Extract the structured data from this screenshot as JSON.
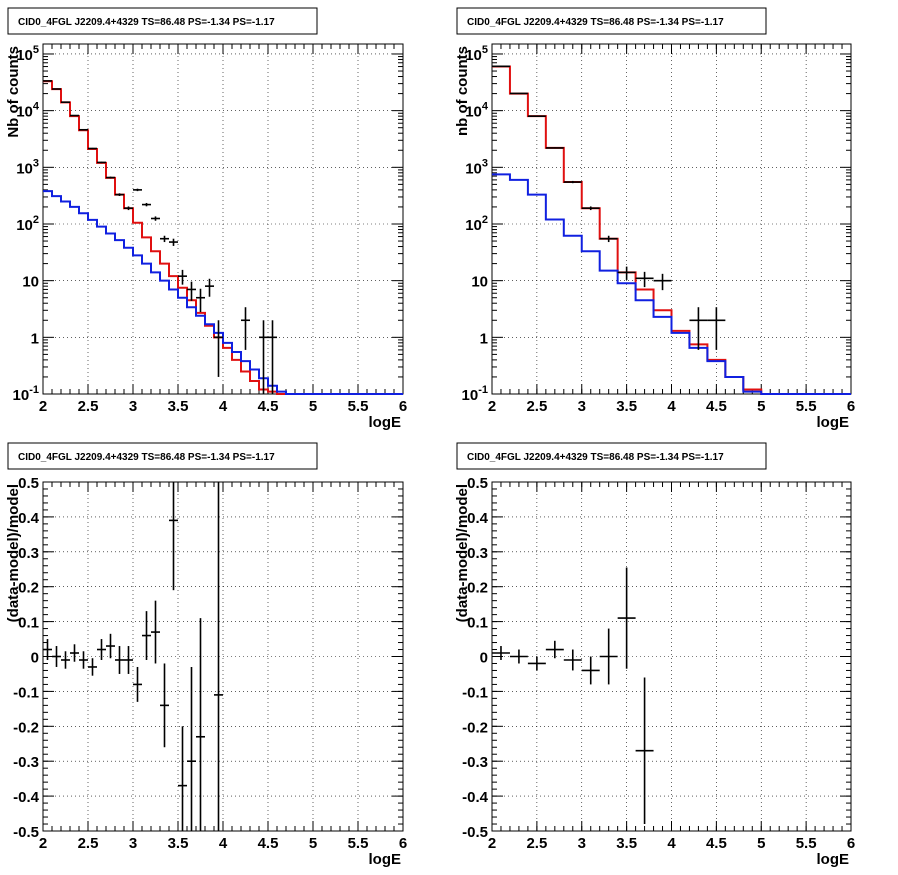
{
  "chart_data": [
    {
      "type": "line",
      "title": "CID0_4FGL J2209.4+4329 TS=86.48 PS=-1.34 PS=-1.17",
      "xlabel": "logE",
      "ylabel": "Nb of counts",
      "xlim": [
        2,
        6
      ],
      "ylim": [
        0.1,
        150000
      ],
      "yscale": "log",
      "grid": true,
      "xticks": [
        "2",
        "2.5",
        "3",
        "3.5",
        "4",
        "4.5",
        "5",
        "5.5",
        "6"
      ],
      "yticks": [
        {
          "value": 0.1,
          "base": "10",
          "exp": "-1"
        },
        {
          "value": 1,
          "label": "1"
        },
        {
          "value": 10,
          "label": "10"
        },
        {
          "value": 100,
          "base": "10",
          "exp": "2"
        },
        {
          "value": 1000,
          "base": "10",
          "exp": "3"
        },
        {
          "value": 10000,
          "base": "10",
          "exp": "4"
        },
        {
          "value": 100000,
          "base": "10",
          "exp": "5"
        }
      ],
      "bin_edges": [
        2.0,
        2.1,
        2.2,
        2.3,
        2.4,
        2.5,
        2.6,
        2.7,
        2.8,
        2.9,
        3.0,
        3.1,
        3.2,
        3.3,
        3.4,
        3.5,
        3.6,
        3.7,
        3.8,
        3.9,
        4.0,
        4.1,
        4.2,
        4.3,
        4.4,
        4.5,
        4.6,
        4.7,
        4.8,
        4.9,
        5.0,
        5.1,
        5.2,
        5.3,
        5.4,
        5.5,
        5.6,
        5.7,
        5.8,
        5.9,
        6.0
      ],
      "series": [
        {
          "color": "#e01010",
          "values": [
            33000,
            24000,
            14000,
            8000,
            4500,
            2100,
            1200,
            650,
            330,
            190,
            105,
            58,
            33,
            20,
            12,
            7.5,
            4.5,
            2.7,
            1.6,
            1.0,
            0.65,
            0.4,
            0.25,
            0.17,
            0.12,
            0.11,
            0.1,
            0.1,
            0.1,
            0.1,
            0.1,
            0.1,
            0.1,
            0.1,
            0.1,
            0.1,
            0.1,
            0.1,
            0.1,
            0.1
          ]
        },
        {
          "color": "#1020e0",
          "values": [
            380,
            310,
            250,
            200,
            155,
            118,
            90,
            68,
            52,
            38,
            28,
            20,
            14,
            10,
            7,
            5,
            3.4,
            2.4,
            1.7,
            1.2,
            0.8,
            0.55,
            0.38,
            0.27,
            0.19,
            0.14,
            0.11,
            0.1,
            0.1,
            0.1,
            0.1,
            0.1,
            0.1,
            0.1,
            0.1,
            0.1,
            0.1,
            0.1,
            0.1,
            0.1
          ]
        }
      ],
      "data_points": [
        {
          "x": 2.05,
          "y": 33500,
          "ylo": 33300,
          "yhi": 33700
        },
        {
          "x": 2.15,
          "y": 24100,
          "ylo": 23900,
          "yhi": 24300
        },
        {
          "x": 2.25,
          "y": 14100,
          "ylo": 13950,
          "yhi": 14250
        },
        {
          "x": 2.35,
          "y": 8200,
          "ylo": 8100,
          "yhi": 8300
        },
        {
          "x": 2.45,
          "y": 4600,
          "ylo": 4530,
          "yhi": 4670
        },
        {
          "x": 2.55,
          "y": 2150,
          "ylo": 2100,
          "yhi": 2200
        },
        {
          "x": 2.65,
          "y": 1220,
          "ylo": 1185,
          "yhi": 1255
        },
        {
          "x": 2.75,
          "y": 660,
          "ylo": 635,
          "yhi": 685
        },
        {
          "x": 2.85,
          "y": 330,
          "ylo": 312,
          "yhi": 348
        },
        {
          "x": 2.95,
          "y": 190,
          "ylo": 176,
          "yhi": 204
        },
        {
          "x": 3.05,
          "y": 400,
          "ylo": 380,
          "yhi": 420
        },
        {
          "x": 3.15,
          "y": 220,
          "ylo": 205,
          "yhi": 235
        },
        {
          "x": 3.25,
          "y": 125,
          "ylo": 114,
          "yhi": 136
        },
        {
          "x": 3.35,
          "y": 55,
          "ylo": 48,
          "yhi": 62
        },
        {
          "x": 3.45,
          "y": 48,
          "ylo": 41,
          "yhi": 55
        },
        {
          "x": 3.55,
          "y": 12,
          "ylo": 8.5,
          "yhi": 15.5
        },
        {
          "x": 3.65,
          "y": 7,
          "ylo": 4.4,
          "yhi": 9.6
        },
        {
          "x": 3.75,
          "y": 5,
          "ylo": 2.8,
          "yhi": 7.2
        },
        {
          "x": 3.85,
          "y": 8,
          "ylo": 5.2,
          "yhi": 10.8
        },
        {
          "x": 3.95,
          "y": 1,
          "ylo": 0.2,
          "yhi": 2.0
        },
        {
          "x": 4.25,
          "y": 2,
          "ylo": 0.6,
          "yhi": 3.4
        },
        {
          "x": 4.45,
          "y": 1,
          "ylo": 0.1,
          "yhi": 2.0
        },
        {
          "x": 4.55,
          "y": 1,
          "ylo": 0.1,
          "yhi": 2.0
        }
      ]
    },
    {
      "type": "line",
      "title": "CID0_4FGL J2209.4+4329 TS=86.48 PS=-1.34 PS=-1.17",
      "xlabel": "logE",
      "ylabel": "nb of counts",
      "xlim": [
        2,
        6
      ],
      "ylim": [
        0.1,
        150000
      ],
      "yscale": "log",
      "grid": true,
      "xticks": [
        "2",
        "2.5",
        "3",
        "3.5",
        "4",
        "4.5",
        "5",
        "5.5",
        "6"
      ],
      "yticks": [
        {
          "value": 0.1,
          "base": "10",
          "exp": "-1"
        },
        {
          "value": 1,
          "label": "1"
        },
        {
          "value": 10,
          "label": "10"
        },
        {
          "value": 100,
          "base": "10",
          "exp": "2"
        },
        {
          "value": 1000,
          "base": "10",
          "exp": "3"
        },
        {
          "value": 10000,
          "base": "10",
          "exp": "4"
        },
        {
          "value": 100000,
          "base": "10",
          "exp": "5"
        }
      ],
      "bin_edges": [
        2.0,
        2.2,
        2.4,
        2.6,
        2.8,
        3.0,
        3.2,
        3.4,
        3.6,
        3.8,
        4.0,
        4.2,
        4.4,
        4.6,
        4.8,
        5.0,
        5.2,
        5.4,
        5.6,
        5.8,
        6.0
      ],
      "series": [
        {
          "color": "#e01010",
          "values": [
            60000,
            20000,
            8000,
            2200,
            550,
            190,
            55,
            14,
            7,
            3,
            1.3,
            0.75,
            0.4,
            0.2,
            0.12,
            0.1,
            0.1,
            0.1,
            0.1,
            0.1
          ]
        },
        {
          "color": "#1020e0",
          "values": [
            750,
            600,
            330,
            120,
            62,
            33,
            15,
            9,
            4.5,
            2.3,
            1.2,
            0.65,
            0.38,
            0.2,
            0.11,
            0.1,
            0.1,
            0.1,
            0.1,
            0.1
          ]
        }
      ],
      "data_points": [
        {
          "x": 2.1,
          "y": 60500,
          "ylo": 60200,
          "yhi": 60800
        },
        {
          "x": 2.3,
          "y": 20100,
          "ylo": 19950,
          "yhi": 20250
        },
        {
          "x": 2.5,
          "y": 8000,
          "ylo": 7910,
          "yhi": 8090
        },
        {
          "x": 2.7,
          "y": 2200,
          "ylo": 2150,
          "yhi": 2250
        },
        {
          "x": 2.9,
          "y": 550,
          "ylo": 525,
          "yhi": 575
        },
        {
          "x": 3.1,
          "y": 190,
          "ylo": 176,
          "yhi": 204
        },
        {
          "x": 3.3,
          "y": 55,
          "ylo": 48,
          "yhi": 62
        },
        {
          "x": 3.5,
          "y": 14,
          "ylo": 10.3,
          "yhi": 17.7
        },
        {
          "x": 3.7,
          "y": 11,
          "ylo": 7.7,
          "yhi": 14.3
        },
        {
          "x": 3.9,
          "y": 10,
          "ylo": 6.8,
          "yhi": 13.2
        },
        {
          "x": 4.3,
          "y": 2,
          "ylo": 0.6,
          "yhi": 3.4
        },
        {
          "x": 4.5,
          "y": 2,
          "ylo": 0.6,
          "yhi": 3.4
        }
      ]
    },
    {
      "type": "scatter",
      "title": "CID0_4FGL J2209.4+4329 TS=86.48 PS=-1.34 PS=-1.17",
      "xlabel": "logE",
      "ylabel": "(data-model)/model",
      "xlim": [
        2,
        6
      ],
      "ylim": [
        -0.5,
        0.5
      ],
      "grid": true,
      "xticks": [
        "2",
        "2.5",
        "3",
        "3.5",
        "4",
        "4.5",
        "5",
        "5.5",
        "6"
      ],
      "yticks": [
        "0.5",
        "0.4",
        "0.3",
        "0.2",
        "0.1",
        "0",
        "-0.1",
        "-0.2",
        "-0.3",
        "-0.4",
        "-0.5"
      ],
      "bin_width": 0.1,
      "points": [
        {
          "x": 2.05,
          "y": 0.02,
          "err": 0.03
        },
        {
          "x": 2.15,
          "y": 0.0,
          "err": 0.03
        },
        {
          "x": 2.25,
          "y": -0.01,
          "err": 0.025
        },
        {
          "x": 2.35,
          "y": 0.01,
          "err": 0.025
        },
        {
          "x": 2.45,
          "y": -0.01,
          "err": 0.025
        },
        {
          "x": 2.55,
          "y": -0.03,
          "err": 0.025
        },
        {
          "x": 2.65,
          "y": 0.02,
          "err": 0.03
        },
        {
          "x": 2.75,
          "y": 0.03,
          "err": 0.035
        },
        {
          "x": 2.85,
          "y": -0.01,
          "err": 0.04
        },
        {
          "x": 2.95,
          "y": -0.01,
          "err": 0.04
        },
        {
          "x": 3.05,
          "y": -0.08,
          "err": 0.05
        },
        {
          "x": 3.15,
          "y": 0.06,
          "err": 0.07
        },
        {
          "x": 3.25,
          "y": 0.07,
          "err": 0.09
        },
        {
          "x": 3.35,
          "y": -0.14,
          "err": 0.12
        },
        {
          "x": 3.45,
          "y": 0.39,
          "err": 0.2
        },
        {
          "x": 3.55,
          "y": -0.37,
          "err": 0.17
        },
        {
          "x": 3.65,
          "y": -0.3,
          "err": 0.27
        },
        {
          "x": 3.75,
          "y": -0.23,
          "err": 0.34
        },
        {
          "x": 3.95,
          "y": -0.11,
          "err": 0.8
        }
      ]
    },
    {
      "type": "scatter",
      "title": "CID0_4FGL J2209.4+4329 TS=86.48 PS=-1.34 PS=-1.17",
      "xlabel": "logE",
      "ylabel": "(data-model)/model",
      "xlim": [
        2,
        6
      ],
      "ylim": [
        -0.5,
        0.5
      ],
      "grid": true,
      "xticks": [
        "2",
        "2.5",
        "3",
        "3.5",
        "4",
        "4.5",
        "5",
        "5.5",
        "6"
      ],
      "yticks": [
        "0.5",
        "0.4",
        "0.3",
        "0.2",
        "0.1",
        "0",
        "-0.1",
        "-0.2",
        "-0.3",
        "-0.4",
        "-0.5"
      ],
      "bin_width": 0.2,
      "points": [
        {
          "x": 2.1,
          "y": 0.01,
          "err": 0.02
        },
        {
          "x": 2.3,
          "y": 0.0,
          "err": 0.02
        },
        {
          "x": 2.5,
          "y": -0.02,
          "err": 0.02
        },
        {
          "x": 2.7,
          "y": 0.02,
          "err": 0.025
        },
        {
          "x": 2.9,
          "y": -0.01,
          "err": 0.03
        },
        {
          "x": 3.1,
          "y": -0.04,
          "err": 0.04
        },
        {
          "x": 3.3,
          "y": 0.0,
          "err": 0.08
        },
        {
          "x": 3.5,
          "y": 0.11,
          "err": 0.145
        },
        {
          "x": 3.7,
          "y": -0.27,
          "err": 0.21
        }
      ]
    }
  ]
}
